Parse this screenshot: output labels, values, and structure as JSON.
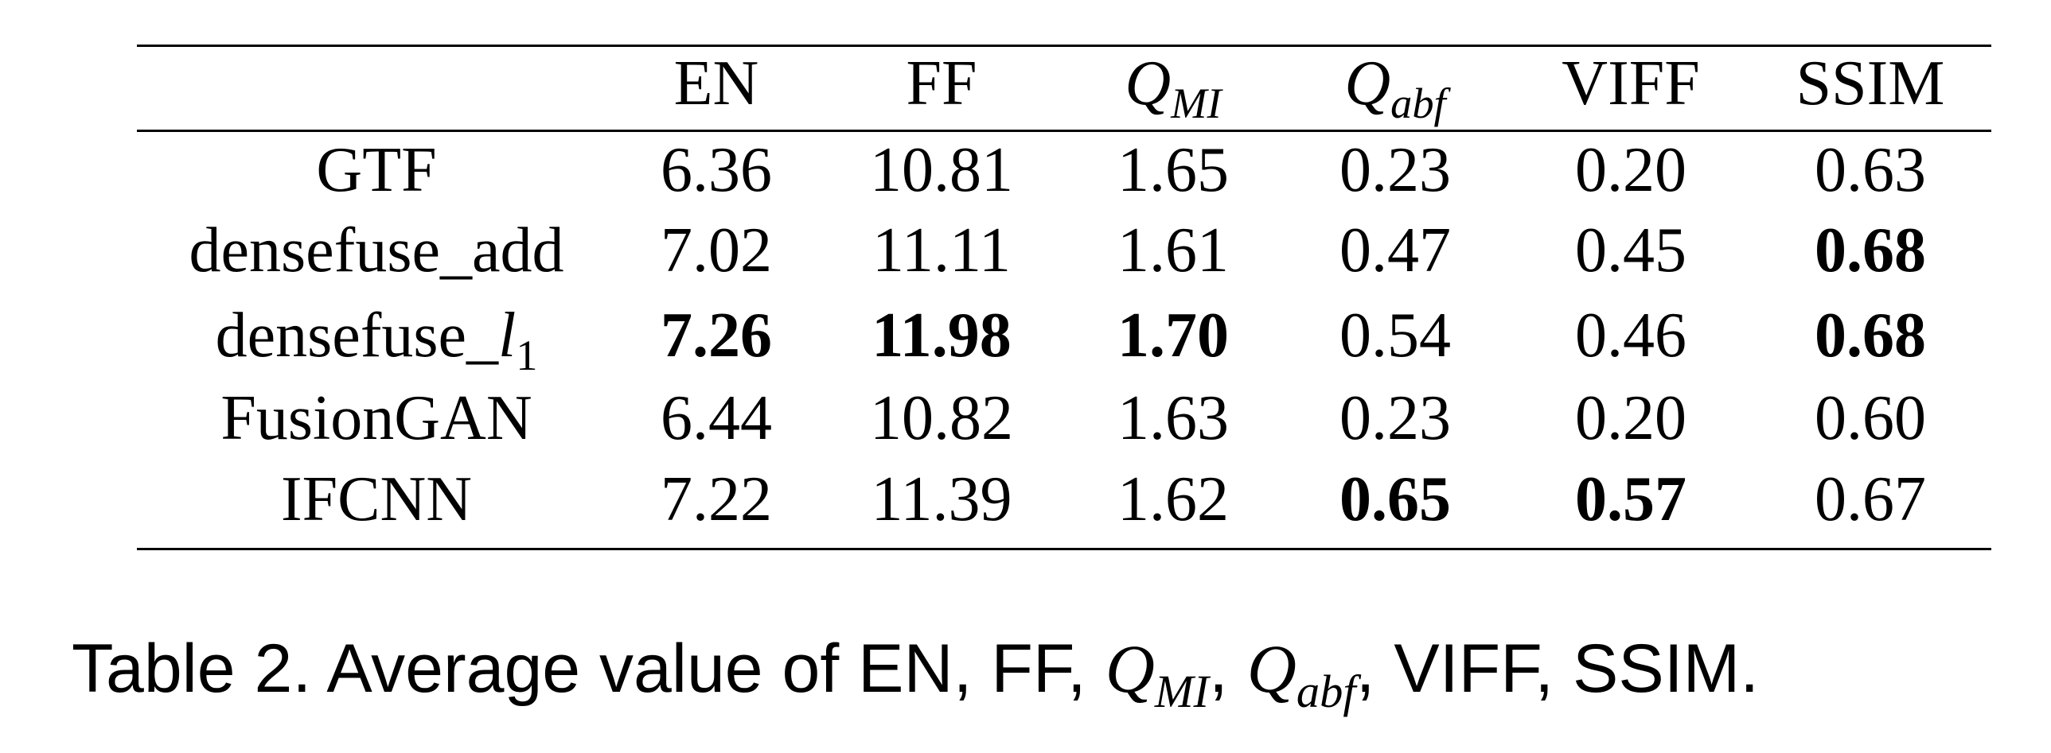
{
  "table": {
    "header": [
      "EN",
      "FF",
      [
        {
          "t": "Q",
          "s": "i"
        },
        {
          "t": "MI",
          "s": "sub-i"
        }
      ],
      [
        {
          "t": "Q",
          "s": "i"
        },
        {
          "t": "abf",
          "s": "sub-i"
        }
      ],
      "VIFF",
      "SSIM"
    ],
    "rows": [
      {
        "name": "GTF",
        "values": [
          "6.36",
          "10.81",
          "1.65",
          "0.23",
          "0.20",
          "0.63"
        ],
        "bold": [
          false,
          false,
          false,
          false,
          false,
          false
        ]
      },
      {
        "name": "densefuse_add",
        "values": [
          "7.02",
          "11.11",
          "1.61",
          "0.47",
          "0.45",
          "0.68"
        ],
        "bold": [
          false,
          false,
          false,
          false,
          false,
          true
        ]
      },
      {
        "name": [
          {
            "t": "densefuse_",
            "s": "n"
          },
          {
            "t": "l",
            "s": "i"
          },
          {
            "t": "1",
            "s": "sub"
          }
        ],
        "values": [
          "7.26",
          "11.98",
          "1.70",
          "0.54",
          "0.46",
          "0.68"
        ],
        "bold": [
          true,
          true,
          true,
          false,
          false,
          true
        ]
      },
      {
        "name": "FusionGAN",
        "values": [
          "6.44",
          "10.82",
          "1.63",
          "0.23",
          "0.20",
          "0.60"
        ],
        "bold": [
          false,
          false,
          false,
          false,
          false,
          false
        ]
      },
      {
        "name": "IFCNN",
        "values": [
          "7.22",
          "11.39",
          "1.62",
          "0.65",
          "0.57",
          "0.67"
        ],
        "bold": [
          false,
          false,
          false,
          true,
          true,
          false
        ]
      }
    ]
  },
  "caption": [
    {
      "t": "Table 2. Average value of EN, FF, ",
      "s": "n"
    },
    {
      "t": "Q",
      "s": "i"
    },
    {
      "t": "MI",
      "s": "sub-i"
    },
    {
      "t": ", ",
      "s": "n"
    },
    {
      "t": "Q",
      "s": "i"
    },
    {
      "t": "abf",
      "s": "sub-i"
    },
    {
      "t": ", VIFF, SSIM.",
      "s": "n"
    }
  ]
}
